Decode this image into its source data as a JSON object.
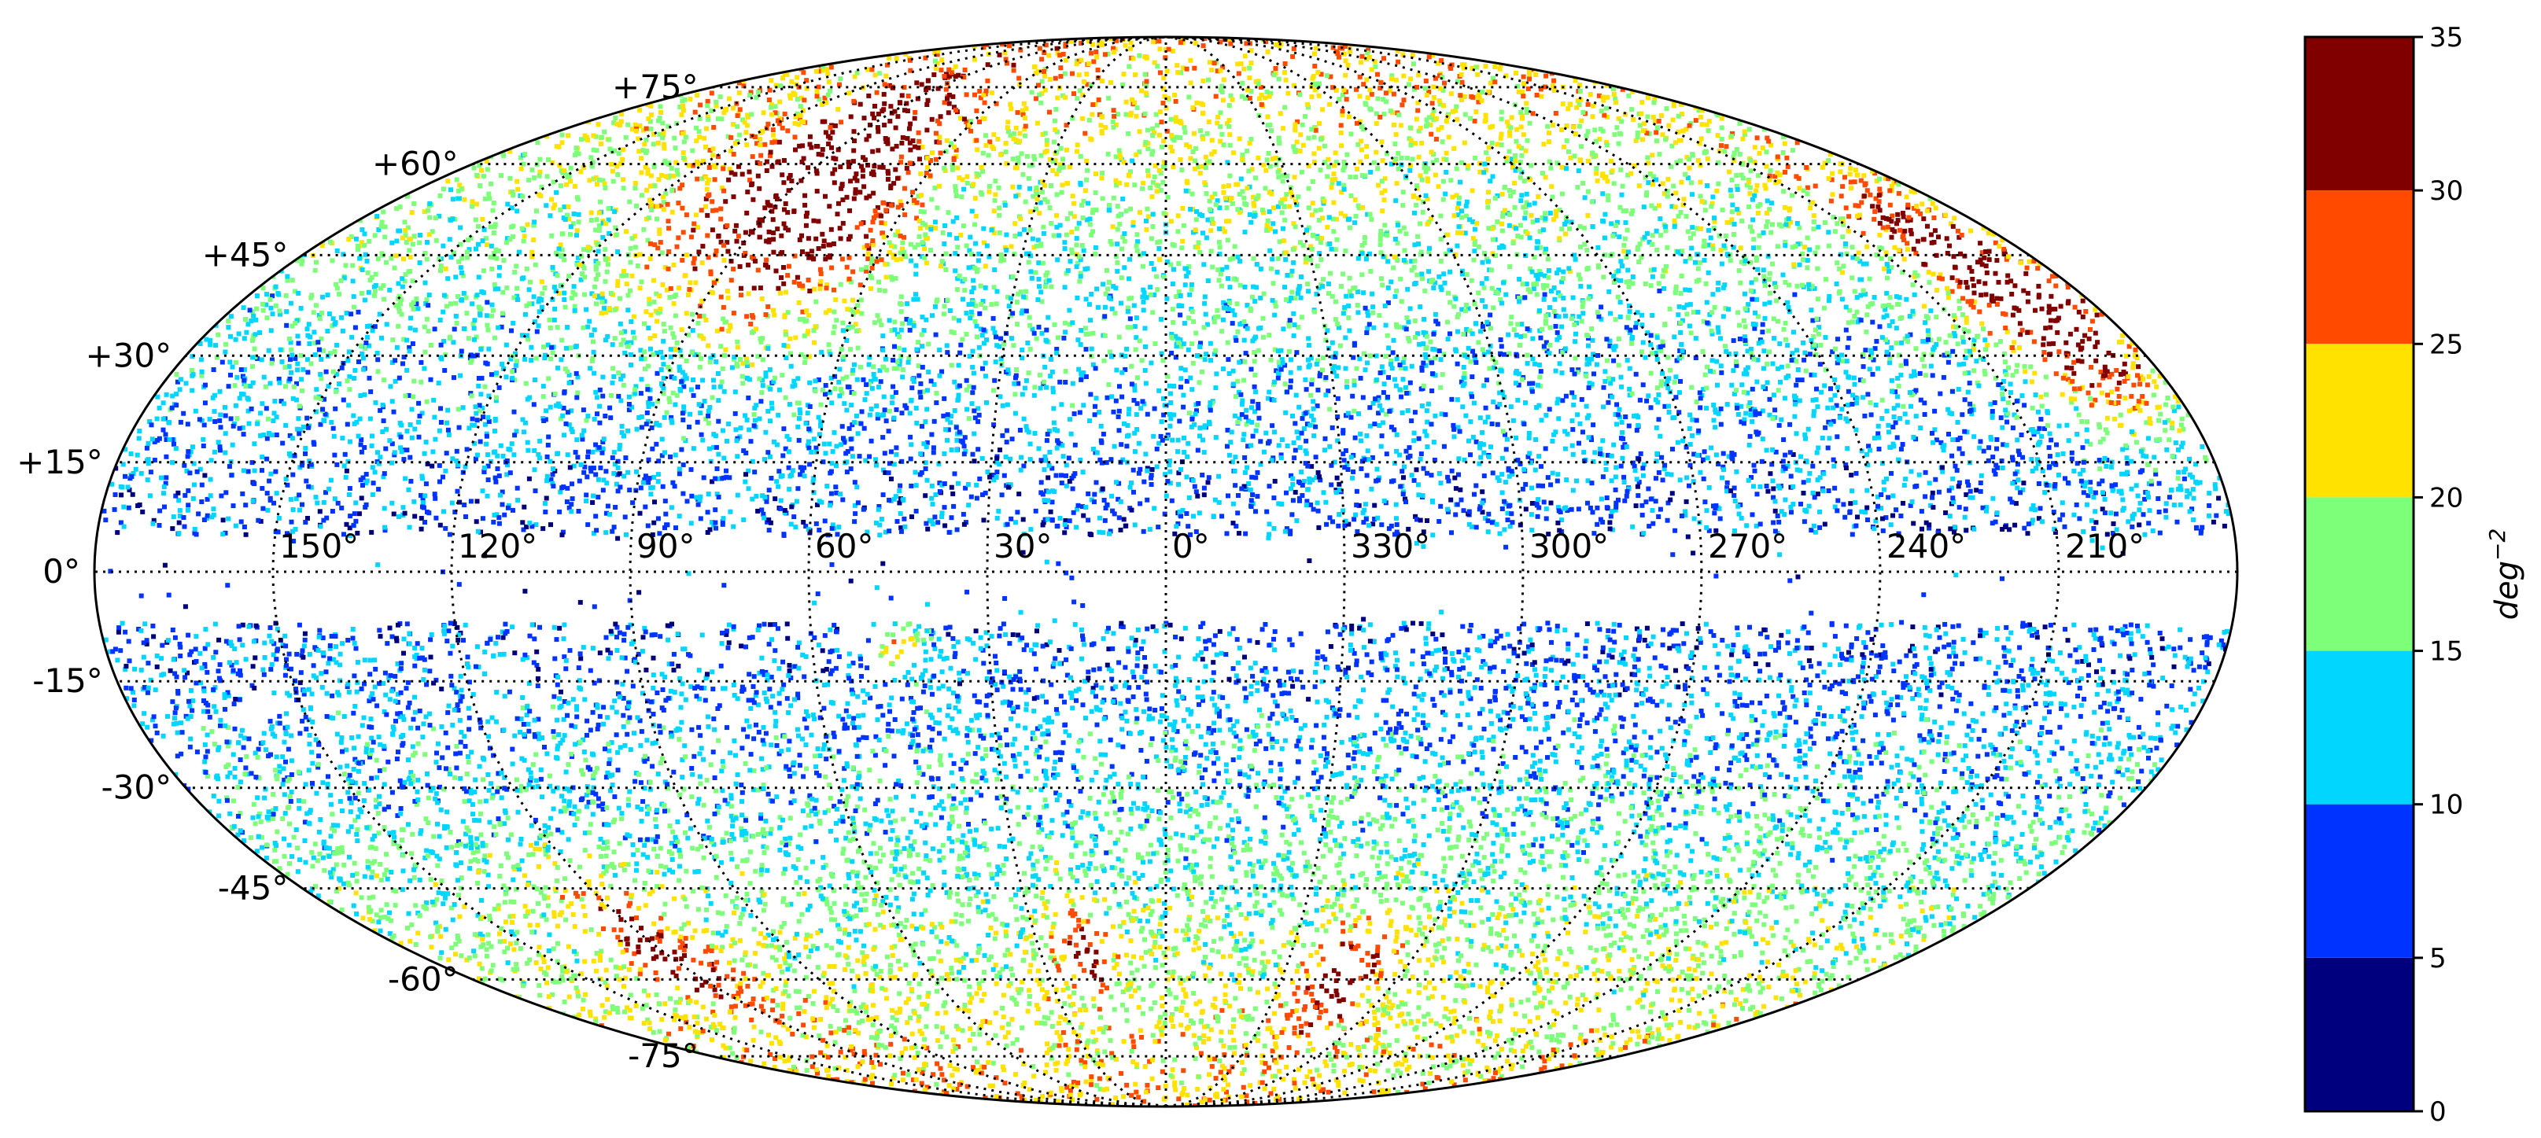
{
  "map": {
    "projection": "mollweide",
    "lat_labels": [
      {
        "lat": 75,
        "text": "+75°"
      },
      {
        "lat": 60,
        "text": "+60°"
      },
      {
        "lat": 45,
        "text": "+45°"
      },
      {
        "lat": 30,
        "text": "+30°"
      },
      {
        "lat": 15,
        "text": "+15°"
      },
      {
        "lat": 0,
        "text": "0°"
      },
      {
        "lat": -15,
        "text": "-15°"
      },
      {
        "lat": -30,
        "text": "-30°"
      },
      {
        "lat": -45,
        "text": "-45°"
      },
      {
        "lat": -60,
        "text": "-60°"
      },
      {
        "lat": -75,
        "text": "-75°"
      }
    ],
    "lon_labels": [
      {
        "lon": 150,
        "text": "150°"
      },
      {
        "lon": 120,
        "text": "120°"
      },
      {
        "lon": 90,
        "text": "90°"
      },
      {
        "lon": 60,
        "text": "60°"
      },
      {
        "lon": 30,
        "text": "30°"
      },
      {
        "lon": 0,
        "text": "0°"
      },
      {
        "lon": -30,
        "text": "330°"
      },
      {
        "lon": -60,
        "text": "300°"
      },
      {
        "lon": -90,
        "text": "270°"
      },
      {
        "lon": -120,
        "text": "240°"
      },
      {
        "lon": -150,
        "text": "210°"
      }
    ],
    "graticule_step_deg": 15,
    "masked_band_lat": [
      -7,
      5
    ]
  },
  "colorbar": {
    "label": "deg",
    "label_exponent": "−2",
    "ticks": [
      "35",
      "30",
      "25",
      "20",
      "15",
      "10",
      "5",
      "0"
    ],
    "bins": [
      {
        "range": [
          30,
          35
        ],
        "color": "#800000"
      },
      {
        "range": [
          25,
          30
        ],
        "color": "#ff4a00"
      },
      {
        "range": [
          20,
          25
        ],
        "color": "#ffe200"
      },
      {
        "range": [
          15,
          20
        ],
        "color": "#7dff7a"
      },
      {
        "range": [
          10,
          15
        ],
        "color": "#00d6ff"
      },
      {
        "range": [
          5,
          10
        ],
        "color": "#0033ff"
      },
      {
        "range": [
          0,
          5
        ],
        "color": "#00007f"
      }
    ]
  }
}
